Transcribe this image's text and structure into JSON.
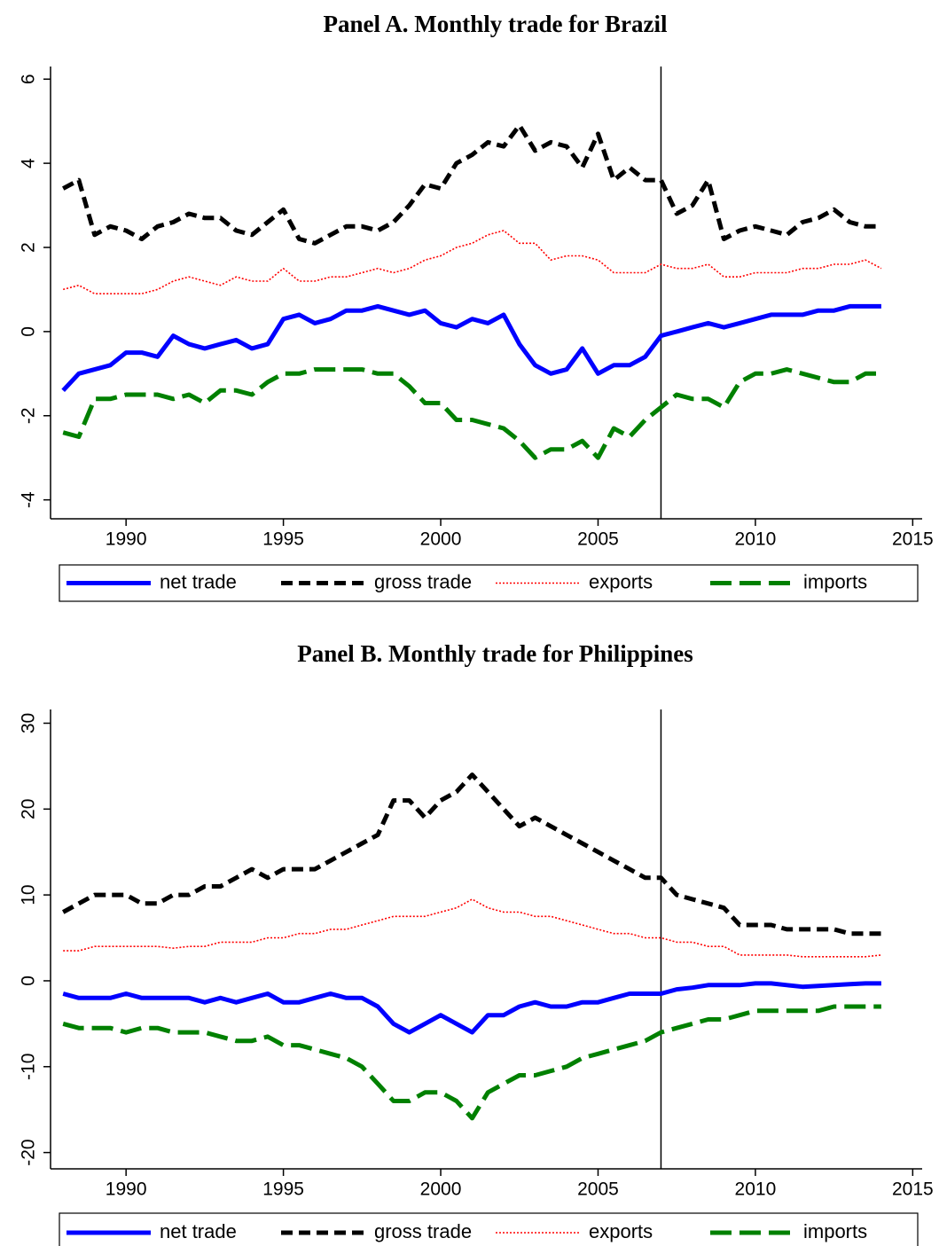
{
  "chart_data": [
    {
      "type": "line",
      "title": "Panel A. Monthly trade for Brazil",
      "x": [
        1988,
        1988.5,
        1989,
        1989.5,
        1990,
        1990.5,
        1991,
        1991.5,
        1992,
        1992.5,
        1993,
        1993.5,
        1994,
        1994.5,
        1995,
        1995.5,
        1996,
        1996.5,
        1997,
        1997.5,
        1998,
        1998.5,
        1999,
        1999.5,
        2000,
        2000.5,
        2001,
        2001.5,
        2002,
        2002.5,
        2003,
        2003.5,
        2004,
        2004.5,
        2005,
        2005.5,
        2006,
        2006.5,
        2007,
        2007.5,
        2008,
        2008.5,
        2009,
        2009.5,
        2010,
        2010.5,
        2011,
        2011.5,
        2012,
        2012.5,
        2013,
        2013.5,
        2014
      ],
      "series": [
        {
          "name": "net trade",
          "color": "#0000ff",
          "dash": "solid",
          "values": [
            -1.4,
            -1.0,
            -0.9,
            -0.8,
            -0.5,
            -0.5,
            -0.6,
            -0.1,
            -0.3,
            -0.4,
            -0.3,
            -0.2,
            -0.4,
            -0.3,
            0.3,
            0.4,
            0.2,
            0.3,
            0.5,
            0.5,
            0.6,
            0.5,
            0.4,
            0.5,
            0.2,
            0.1,
            0.3,
            0.2,
            0.4,
            -0.3,
            -0.8,
            -1.0,
            -0.9,
            -0.4,
            -1.0,
            -0.8,
            -0.8,
            -0.6,
            -0.1,
            0.0,
            0.1,
            0.2,
            0.1,
            0.2,
            0.3,
            0.4,
            0.4,
            0.4,
            0.5,
            0.5,
            0.6,
            0.6,
            0.6
          ]
        },
        {
          "name": "gross trade",
          "color": "#000000",
          "dash": "dash",
          "values": [
            3.4,
            3.6,
            2.3,
            2.5,
            2.4,
            2.2,
            2.5,
            2.6,
            2.8,
            2.7,
            2.7,
            2.4,
            2.3,
            2.6,
            2.9,
            2.2,
            2.1,
            2.3,
            2.5,
            2.5,
            2.4,
            2.6,
            3.0,
            3.5,
            3.4,
            4.0,
            4.2,
            4.5,
            4.4,
            4.9,
            4.3,
            4.5,
            4.4,
            3.9,
            4.7,
            3.6,
            3.9,
            3.6,
            3.6,
            2.8,
            3.0,
            3.6,
            2.2,
            2.4,
            2.5,
            2.4,
            2.3,
            2.6,
            2.7,
            2.9,
            2.6,
            2.5,
            2.5
          ]
        },
        {
          "name": "exports",
          "color": "#ff0000",
          "dash": "dot",
          "values": [
            1.0,
            1.1,
            0.9,
            0.9,
            0.9,
            0.9,
            1.0,
            1.2,
            1.3,
            1.2,
            1.1,
            1.3,
            1.2,
            1.2,
            1.5,
            1.2,
            1.2,
            1.3,
            1.3,
            1.4,
            1.5,
            1.4,
            1.5,
            1.7,
            1.8,
            2.0,
            2.1,
            2.3,
            2.4,
            2.1,
            2.1,
            1.7,
            1.8,
            1.8,
            1.7,
            1.4,
            1.4,
            1.4,
            1.6,
            1.5,
            1.5,
            1.6,
            1.3,
            1.3,
            1.4,
            1.4,
            1.4,
            1.5,
            1.5,
            1.6,
            1.6,
            1.7,
            1.5
          ]
        },
        {
          "name": "imports",
          "color": "#008000",
          "dash": "longdash",
          "values": [
            -2.4,
            -2.5,
            -1.6,
            -1.6,
            -1.5,
            -1.5,
            -1.5,
            -1.6,
            -1.5,
            -1.7,
            -1.4,
            -1.4,
            -1.5,
            -1.2,
            -1.0,
            -1.0,
            -0.9,
            -0.9,
            -0.9,
            -0.9,
            -1.0,
            -1.0,
            -1.3,
            -1.7,
            -1.7,
            -2.1,
            -2.1,
            -2.2,
            -2.3,
            -2.6,
            -3.0,
            -2.8,
            -2.8,
            -2.6,
            -3.0,
            -2.3,
            -2.5,
            -2.1,
            -1.8,
            -1.5,
            -1.6,
            -1.6,
            -1.8,
            -1.2,
            -1.0,
            -1.0,
            -0.9,
            -1.0,
            -1.1,
            -1.2,
            -1.2,
            -1.0,
            -1.0
          ]
        }
      ],
      "xlim": [
        1987.6,
        2015.3
      ],
      "xticks": [
        1990,
        1995,
        2000,
        2005,
        2010,
        2015
      ],
      "ylim": [
        -4.45,
        6.3
      ],
      "yticks": [
        -4,
        -2,
        0,
        2,
        4,
        6
      ],
      "vline": 2007,
      "legend": "bottom"
    },
    {
      "type": "line",
      "title": "Panel B. Monthly trade for Philippines",
      "x": [
        1988,
        1988.5,
        1989,
        1989.5,
        1990,
        1990.5,
        1991,
        1991.5,
        1992,
        1992.5,
        1993,
        1993.5,
        1994,
        1994.5,
        1995,
        1995.5,
        1996,
        1996.5,
        1997,
        1997.5,
        1998,
        1998.5,
        1999,
        1999.5,
        2000,
        2000.5,
        2001,
        2001.5,
        2002,
        2002.5,
        2003,
        2003.5,
        2004,
        2004.5,
        2005,
        2005.5,
        2006,
        2006.5,
        2007,
        2007.5,
        2008,
        2008.5,
        2009,
        2009.5,
        2010,
        2010.5,
        2011,
        2011.5,
        2012,
        2012.5,
        2013,
        2013.5,
        2014
      ],
      "series": [
        {
          "name": "net trade",
          "color": "#0000ff",
          "dash": "solid",
          "values": [
            -1.5,
            -2,
            -2,
            -2,
            -1.5,
            -2,
            -2,
            -2,
            -2,
            -2.5,
            -2,
            -2.5,
            -2,
            -1.5,
            -2.5,
            -2.5,
            -2,
            -1.5,
            -2,
            -2,
            -3,
            -5,
            -6,
            -5,
            -4,
            -5,
            -6,
            -4,
            -4,
            -3,
            -2.5,
            -3,
            -3,
            -2.5,
            -2.5,
            -2,
            -1.5,
            -1.5,
            -1.5,
            -1,
            -0.8,
            -0.5,
            -0.5,
            -0.5,
            -0.3,
            -0.3,
            -0.5,
            -0.7,
            -0.6,
            -0.5,
            -0.4,
            -0.3,
            -0.3
          ]
        },
        {
          "name": "gross trade",
          "color": "#000000",
          "dash": "dash",
          "values": [
            8,
            9,
            10,
            10,
            10,
            9,
            9,
            10,
            10,
            11,
            11,
            12,
            13,
            12,
            13,
            13,
            13,
            14,
            15,
            16,
            17,
            21,
            21,
            19,
            21,
            22,
            24,
            22,
            20,
            18,
            19,
            18,
            17,
            16,
            15,
            14,
            13,
            12,
            12,
            10,
            9.5,
            9,
            8.5,
            6.5,
            6.5,
            6.5,
            6,
            6,
            6,
            6,
            5.5,
            5.5,
            5.5
          ]
        },
        {
          "name": "exports",
          "color": "#ff0000",
          "dash": "dot",
          "values": [
            3.5,
            3.5,
            4,
            4,
            4,
            4,
            4,
            3.8,
            4,
            4,
            4.5,
            4.5,
            4.5,
            5,
            5,
            5.5,
            5.5,
            6,
            6,
            6.5,
            7,
            7.5,
            7.5,
            7.5,
            8,
            8.5,
            9.5,
            8.5,
            8,
            8,
            7.5,
            7.5,
            7,
            6.5,
            6,
            5.5,
            5.5,
            5,
            5,
            4.5,
            4.5,
            4,
            4,
            3,
            3,
            3,
            3,
            2.8,
            2.8,
            2.8,
            2.8,
            2.8,
            3
          ]
        },
        {
          "name": "imports",
          "color": "#008000",
          "dash": "longdash",
          "values": [
            -5,
            -5.5,
            -5.5,
            -5.5,
            -6,
            -5.5,
            -5.5,
            -6,
            -6,
            -6,
            -6.5,
            -7,
            -7,
            -6.5,
            -7.5,
            -7.5,
            -8,
            -8.5,
            -9,
            -10,
            -12,
            -14,
            -14,
            -13,
            -13,
            -14,
            -16,
            -13,
            -12,
            -11,
            -11,
            -10.5,
            -10,
            -9,
            -8.5,
            -8,
            -7.5,
            -7,
            -6,
            -5.5,
            -5,
            -4.5,
            -4.5,
            -4,
            -3.5,
            -3.5,
            -3.5,
            -3.5,
            -3.5,
            -3,
            -3,
            -3,
            -3
          ]
        }
      ],
      "xlim": [
        1987.6,
        2015.3
      ],
      "xticks": [
        1990,
        1995,
        2000,
        2005,
        2010,
        2015
      ],
      "ylim": [
        -21.9,
        31.6
      ],
      "yticks": [
        -20,
        -10,
        0,
        10,
        20,
        30
      ],
      "vline": 2007,
      "legend": "bottom"
    }
  ]
}
